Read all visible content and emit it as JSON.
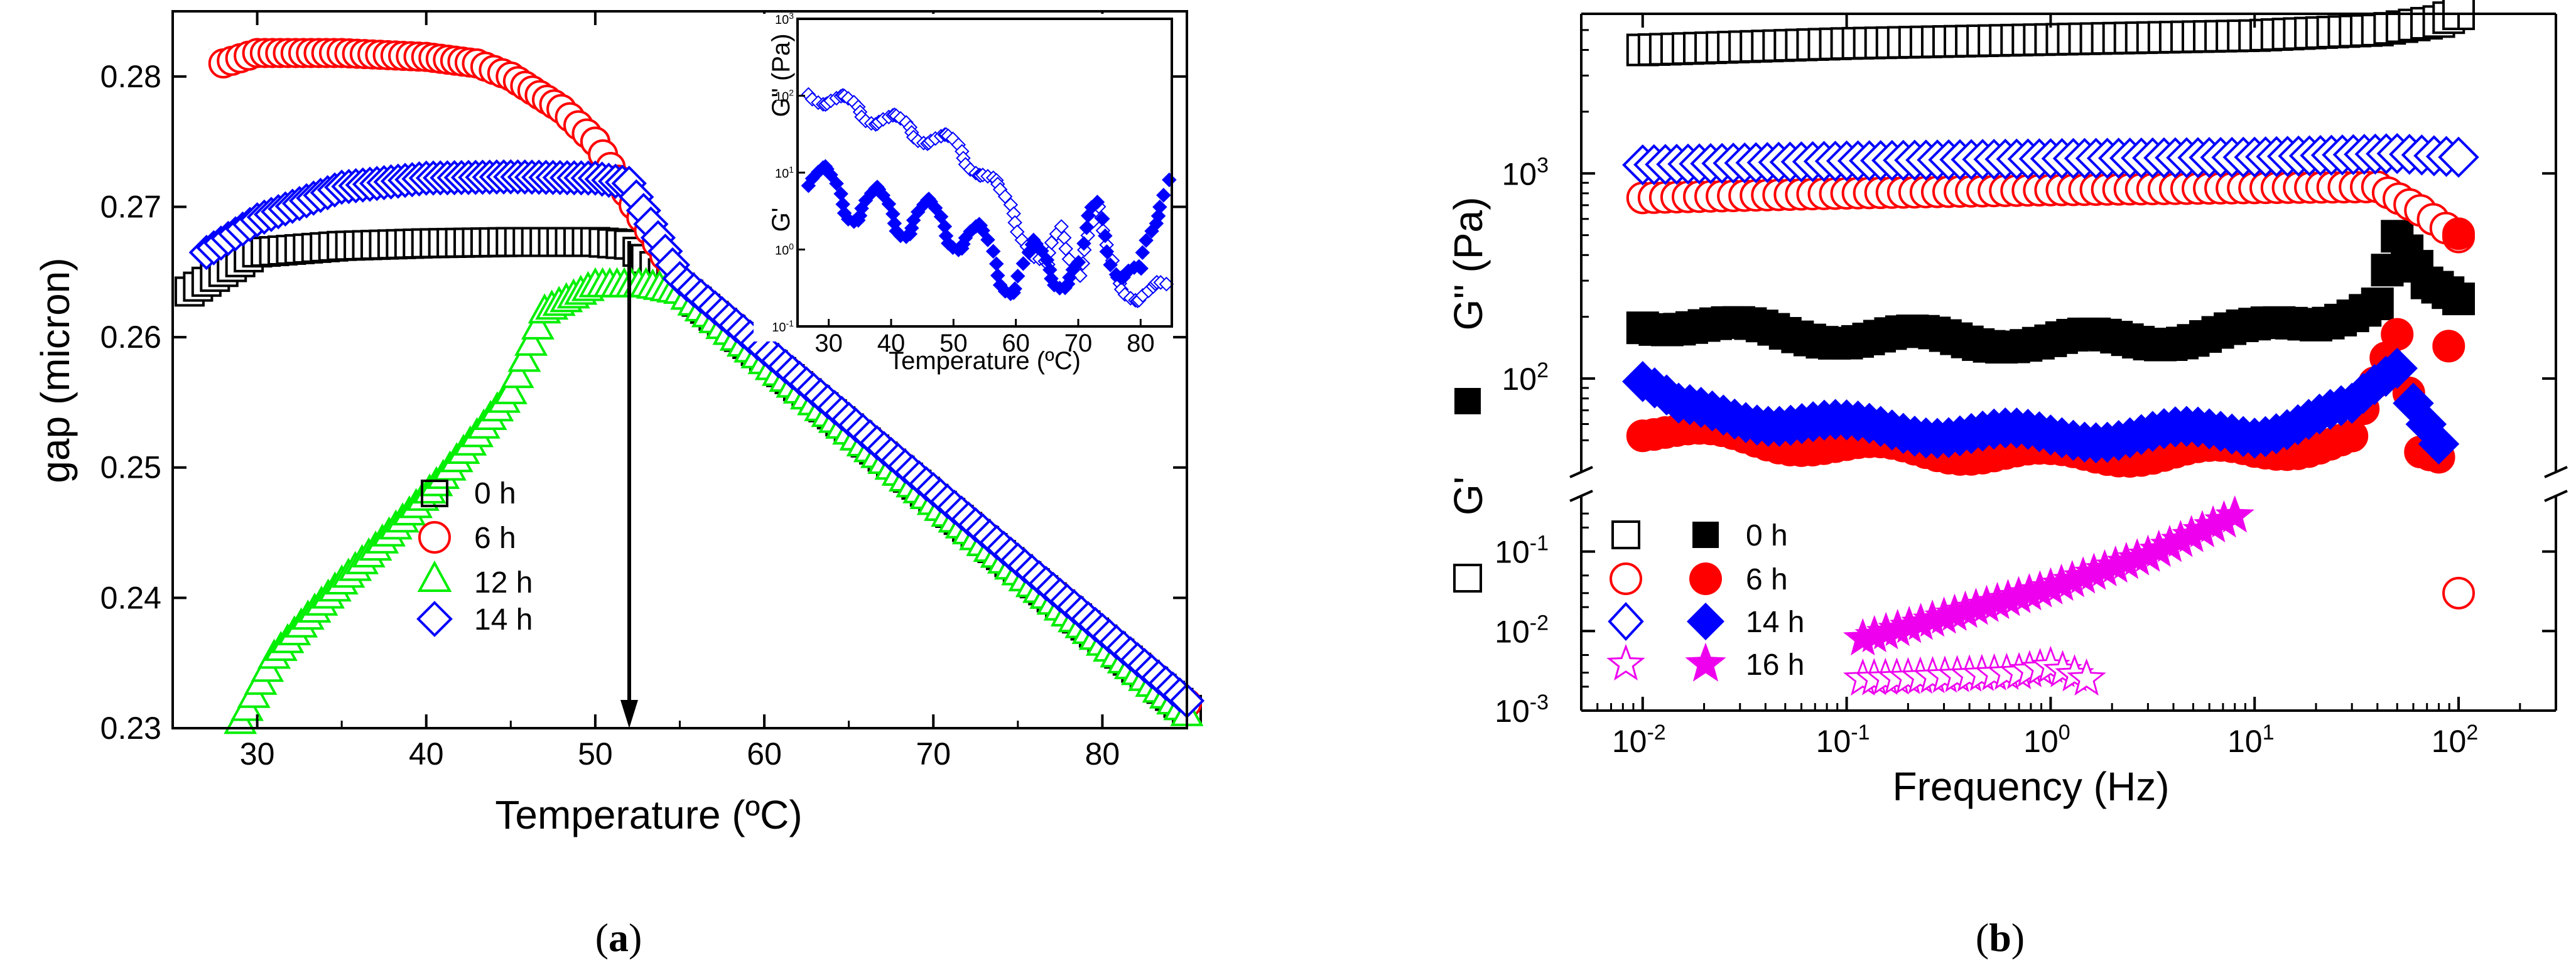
{
  "chart_data": [
    {
      "panel": "(a)",
      "type": "scatter",
      "xlabel": "Temperature (ºC)",
      "ylabel": "gap (micron)",
      "xlim": [
        25,
        85
      ],
      "ylim": [
        0.23,
        0.285
      ],
      "xticks": [
        "30",
        "40",
        "50",
        "60",
        "70",
        "80"
      ],
      "yticks": [
        "0.23",
        "0.24",
        "0.25",
        "0.26",
        "0.27",
        "0.28"
      ],
      "annotation": "arrow pointing down at 52 ºC",
      "legend": {
        "position": "center-left",
        "entries": [
          "0 h",
          "6 h",
          "12 h",
          "14 h"
        ]
      },
      "series": [
        {
          "name": "0 h",
          "marker": "open-square",
          "color": "#000000",
          "segments": [
            {
              "x": [
                26,
                28,
                30,
                35,
                40,
                45,
                50,
                52
              ],
              "y": [
                0.2635,
                0.265,
                0.2665,
                0.267,
                0.2672,
                0.2673,
                0.2673,
                0.2671
              ]
            },
            {
              "x": [
                52,
                55,
                60,
                65,
                70,
                75,
                80,
                85
              ],
              "y": [
                0.2671,
                0.2638,
                0.2584,
                0.253,
                0.2476,
                0.2422,
                0.2368,
                0.2314
              ]
            }
          ]
        },
        {
          "name": "6 h",
          "marker": "open-circle",
          "color": "#ff0000",
          "segments": [
            {
              "x": [
                28,
                30,
                35,
                40,
                43,
                45,
                48,
                50
              ],
              "y": [
                0.281,
                0.2818,
                0.2818,
                0.2815,
                0.281,
                0.28,
                0.2775,
                0.275
              ]
            },
            {
              "x": [
                50,
                55,
                60,
                65,
                70,
                75,
                80,
                85
              ],
              "y": [
                0.275,
                0.2643,
                0.2589,
                0.2535,
                0.2481,
                0.2427,
                0.2373,
                0.2319
              ]
            }
          ]
        },
        {
          "name": "12 h",
          "marker": "open-triangle",
          "color": "#00ee00",
          "segments": [
            {
              "x": [
                29,
                31,
                33,
                35,
                37,
                39,
                41,
                43,
                45,
                47,
                50,
                53
              ],
              "y": [
                0.2305,
                0.2355,
                0.2385,
                0.2412,
                0.2438,
                0.2465,
                0.2493,
                0.2525,
                0.2558,
                0.262,
                0.264,
                0.264
              ]
            },
            {
              "x": [
                53,
                55,
                60,
                65,
                70,
                75,
                80,
                85
              ],
              "y": [
                0.264,
                0.2635,
                0.2581,
                0.2527,
                0.2473,
                0.2419,
                0.2365,
                0.2311
              ]
            }
          ]
        },
        {
          "name": "14 h",
          "marker": "open-diamond",
          "color": "#0000ff",
          "segments": [
            {
              "x": [
                27,
                30,
                35,
                40,
                45,
                50,
                52
              ],
              "y": [
                0.2665,
                0.269,
                0.2715,
                0.2722,
                0.2723,
                0.2722,
                0.2718
              ]
            },
            {
              "x": [
                52,
                55,
                60,
                65,
                70,
                75,
                80,
                85
              ],
              "y": [
                0.2718,
                0.2645,
                0.2591,
                0.2537,
                0.2483,
                0.2429,
                0.2375,
                0.2321
              ]
            }
          ]
        }
      ]
    },
    {
      "panel": "inset of (a)",
      "type": "scatter",
      "xlabel": "Temperature (ºC)",
      "ylabel": "G' , G'' (Pa)",
      "ylabels": [
        "G'' (Pa)",
        "G'"
      ],
      "xlim": [
        25,
        85
      ],
      "ylim_log": [
        -1,
        3
      ],
      "yscale": "log",
      "xticks": [
        "30",
        "40",
        "50",
        "60",
        "70",
        "80"
      ],
      "yticks": [
        "10⁻¹",
        "10⁰",
        "10¹",
        "10²",
        "10³"
      ],
      "series": [
        {
          "name": "G''",
          "marker": "open-diamond",
          "color": "#0000ff",
          "x": [
            27,
            30,
            35,
            40,
            45,
            50,
            55,
            60,
            62,
            65,
            67,
            70,
            73,
            76,
            80,
            84
          ],
          "y": [
            120,
            90,
            65,
            45,
            32,
            22,
            10,
            2.5,
            1.2,
            0.5,
            1.8,
            0.6,
            3,
            0.4,
            0.25,
            0.3
          ]
        },
        {
          "name": "G'",
          "marker": "filled-diamond",
          "color": "#0000ff",
          "x": [
            27,
            30,
            35,
            40,
            45,
            50,
            55,
            60,
            63,
            67,
            70,
            73,
            76,
            80,
            85
          ],
          "y": [
            8,
            6,
            4,
            3,
            2.5,
            2,
            1,
            0.4,
            0.7,
            0.6,
            0.5,
            3,
            0.9,
            0.3,
            25
          ]
        }
      ]
    },
    {
      "panel": "(b)",
      "type": "scatter",
      "xlabel": "Frequency (Hz)",
      "ylabel_rotated": "G'' (Pa)",
      "ylabel_upright": "G'",
      "xscale": "log",
      "yscale": "log",
      "xlim": [
        0.005,
        300
      ],
      "ylim_upper": [
        35,
        6000
      ],
      "ylim_lower": [
        0.001,
        0.5
      ],
      "xticks": [
        "10⁻²",
        "10⁻¹",
        "10⁰",
        "10¹",
        "10²"
      ],
      "yticks_upper": [
        "10²",
        "10³"
      ],
      "yticks_lower": [
        "10⁻³",
        "10⁻²",
        "10⁻¹"
      ],
      "legend": {
        "position": "lower-left",
        "entries": [
          "0 h",
          "6 h",
          "14 h",
          "16 h"
        ]
      },
      "series": [
        {
          "name": "0 h G''",
          "marker": "open-square",
          "color": "#000000",
          "x": [
            0.01,
            0.1,
            1,
            10,
            40,
            80,
            100
          ],
          "y": [
            4000,
            4300,
            4500,
            4700,
            5000,
            5500,
            6000
          ]
        },
        {
          "name": "0 h G'",
          "marker": "filled-square",
          "color": "#000000",
          "x": [
            0.01,
            0.02,
            0.05,
            0.1,
            0.5,
            1,
            5,
            10,
            20,
            40,
            50,
            70,
            100
          ],
          "y": [
            190,
            180,
            165,
            160,
            155,
            150,
            160,
            170,
            190,
            240,
            480,
            270,
            240
          ]
        },
        {
          "name": "6 h G''",
          "marker": "open-circle",
          "color": "#ff0000",
          "x": [
            0.01,
            0.1,
            1,
            10,
            40,
            65,
            100
          ],
          "y": [
            760,
            800,
            830,
            850,
            860,
            660,
            490
          ]
        },
        {
          "name": "6 h G'",
          "marker": "filled-circle",
          "color": "#ff0000",
          "x": [
            0.01,
            0.1,
            1,
            10,
            30,
            50,
            65,
            80,
            100
          ],
          "y": [
            56,
            46,
            42,
            44,
            50,
            155,
            44,
            44,
            550
          ]
        },
        {
          "name": "14 h G''",
          "marker": "open-diamond",
          "color": "#0000ff",
          "x": [
            0.01,
            0.1,
            1,
            10,
            50,
            100
          ],
          "y": [
            1100,
            1150,
            1180,
            1200,
            1250,
            1200
          ]
        },
        {
          "name": "14 h G'",
          "marker": "filled-diamond",
          "color": "#0000ff",
          "x": [
            0.01,
            0.015,
            0.1,
            1,
            10,
            30,
            50,
            60,
            80
          ],
          "y": [
            95,
            70,
            58,
            52,
            55,
            70,
            115,
            80,
            52
          ]
        },
        {
          "name": "16 h G''",
          "marker": "open-star",
          "color": "#ee00ee",
          "x": [
            0.12,
            0.2,
            0.4,
            0.7,
            1.0,
            1.5
          ],
          "y": [
            0.0025,
            0.0026,
            0.0028,
            0.003,
            0.0036,
            0.0025
          ]
        },
        {
          "name": "16 h G'",
          "marker": "filled-star",
          "color": "#ee00ee",
          "x": [
            0.12,
            0.3,
            1,
            3,
            8
          ],
          "y": [
            0.008,
            0.015,
            0.035,
            0.09,
            0.28
          ]
        },
        {
          "name": "6 h G'' (isolated)",
          "marker": "open-circle",
          "color": "#ff0000",
          "x": [
            100
          ],
          "y": [
            0.03
          ]
        }
      ]
    }
  ],
  "labels": {
    "a": {
      "xlabel": "Temperature (ºC)",
      "ylabel": "gap (micron)",
      "xticks": [
        "30",
        "40",
        "50",
        "60",
        "70",
        "80"
      ],
      "yticks": [
        "0.23",
        "0.24",
        "0.25",
        "0.26",
        "0.27",
        "0.28"
      ],
      "legend": [
        "0 h",
        "6 h",
        "12 h",
        "14 h"
      ],
      "inset": {
        "xlabel": "Temperature (ºC)",
        "ylabel_top": "G'' (Pa)",
        "ylabel_bottom": "G'",
        "xticks": [
          "30",
          "40",
          "50",
          "60",
          "70",
          "80"
        ],
        "ytick_base": "10",
        "ytick_exps": [
          "3",
          "2",
          "1",
          "0",
          "-1"
        ]
      },
      "caption_pre": "(",
      "caption_letter": "a",
      "caption_post": ")"
    },
    "b": {
      "xlabel": "Frequency (Hz)",
      "ylabel_rot": "G'' (Pa)",
      "ylabel_up": "G'",
      "tick_base": "10",
      "xtick_exps": [
        "-2",
        "-1",
        "0",
        "1",
        "2"
      ],
      "ytick_upper_exps": [
        "2",
        "3"
      ],
      "ytick_lower_exps": [
        "-3",
        "-2",
        "-1"
      ],
      "legend": [
        "0 h",
        "6 h",
        "14 h",
        "16 h"
      ],
      "caption_pre": "(",
      "caption_letter": "b",
      "caption_post": ")"
    }
  },
  "colors": {
    "black": "#000000",
    "red": "#ff0000",
    "green": "#00ee00",
    "blue": "#0000ff",
    "magenta": "#ee00ee"
  }
}
